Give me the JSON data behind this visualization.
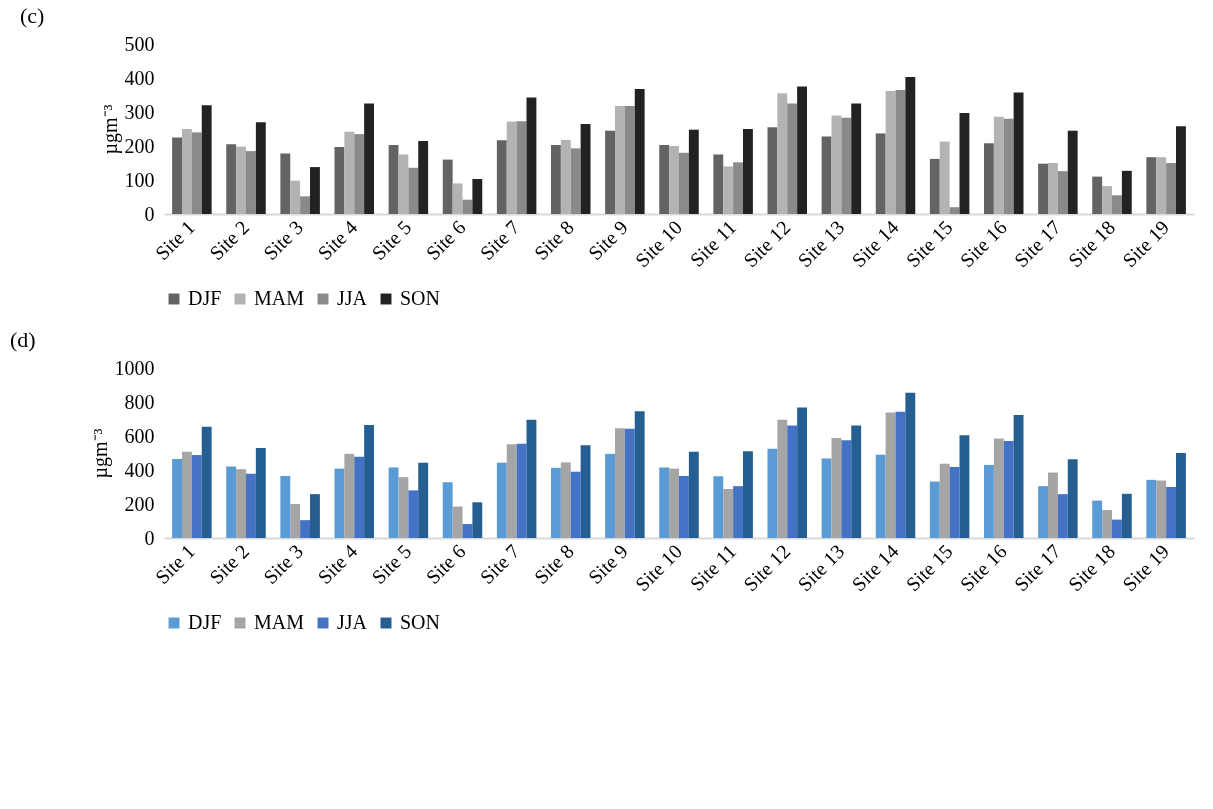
{
  "chart_data": [
    {
      "type": "bar",
      "title": "(c)",
      "ylabel": "µgm⁻³",
      "categories": [
        "Site 1",
        "Site 2",
        "Site 3",
        "Site 4",
        "Site 5",
        "Site 6",
        "Site 7",
        "Site 8",
        "Site 9",
        "Site 10",
        "Site 11",
        "Site 12",
        "Site 13",
        "Site 14",
        "Site 15",
        "Site 16",
        "Site 17",
        "Site 18",
        "Site 19"
      ],
      "series": [
        {
          "name": "DJF",
          "color": "#636363",
          "values": [
            225,
            205,
            178,
            197,
            203,
            160,
            217,
            203,
            245,
            203,
            175,
            255,
            228,
            237,
            162,
            208,
            148,
            110,
            167
          ]
        },
        {
          "name": "MAM",
          "color": "#b3b3b3",
          "values": [
            250,
            198,
            98,
            242,
            175,
            90,
            272,
            218,
            318,
            200,
            140,
            355,
            290,
            362,
            213,
            286,
            150,
            82,
            167
          ]
        },
        {
          "name": "JJA",
          "color": "#8a8a8a",
          "values": [
            240,
            185,
            52,
            235,
            136,
            42,
            273,
            193,
            318,
            180,
            152,
            325,
            283,
            365,
            20,
            280,
            126,
            55,
            150
          ]
        },
        {
          "name": "SON",
          "color": "#222222",
          "values": [
            320,
            270,
            138,
            325,
            215,
            103,
            343,
            265,
            368,
            248,
            250,
            375,
            325,
            403,
            297,
            357,
            245,
            127,
            258
          ]
        }
      ],
      "ylim": [
        0,
        500
      ],
      "yticks": [
        0,
        100,
        200,
        300,
        400,
        500
      ],
      "grid": false,
      "legend": "bottom"
    },
    {
      "type": "bar",
      "title": "(d)",
      "ylabel": "µgm⁻³",
      "categories": [
        "Site 1",
        "Site 2",
        "Site 3",
        "Site 4",
        "Site 5",
        "Site 6",
        "Site 7",
        "Site 8",
        "Site 9",
        "Site 10",
        "Site 11",
        "Site 12",
        "Site 13",
        "Site 14",
        "Site 15",
        "Site 16",
        "Site 17",
        "Site 18",
        "Site 19"
      ],
      "series": [
        {
          "name": "DJF",
          "color": "#5b9bd5",
          "values": [
            465,
            420,
            365,
            408,
            415,
            328,
            443,
            413,
            495,
            415,
            363,
            525,
            468,
            490,
            332,
            430,
            305,
            220,
            342
          ]
        },
        {
          "name": "MAM",
          "color": "#a5a5a5",
          "values": [
            508,
            405,
            200,
            495,
            358,
            185,
            552,
            445,
            645,
            408,
            288,
            695,
            588,
            738,
            437,
            585,
            385,
            165,
            338
          ]
        },
        {
          "name": "JJA",
          "color": "#4472c4",
          "values": [
            488,
            378,
            105,
            478,
            280,
            82,
            555,
            390,
            643,
            365,
            305,
            662,
            575,
            743,
            418,
            570,
            258,
            108,
            300
          ]
        },
        {
          "name": "SON",
          "color": "#255e91",
          "values": [
            655,
            530,
            258,
            665,
            443,
            210,
            695,
            545,
            745,
            507,
            510,
            768,
            662,
            855,
            605,
            723,
            463,
            260,
            500
          ]
        }
      ],
      "ylim": [
        0,
        1000
      ],
      "yticks": [
        0,
        200,
        400,
        600,
        800,
        {
          "value": 1000,
          "label": "1000"
        }
      ],
      "grid": false,
      "legend": "bottom"
    }
  ]
}
